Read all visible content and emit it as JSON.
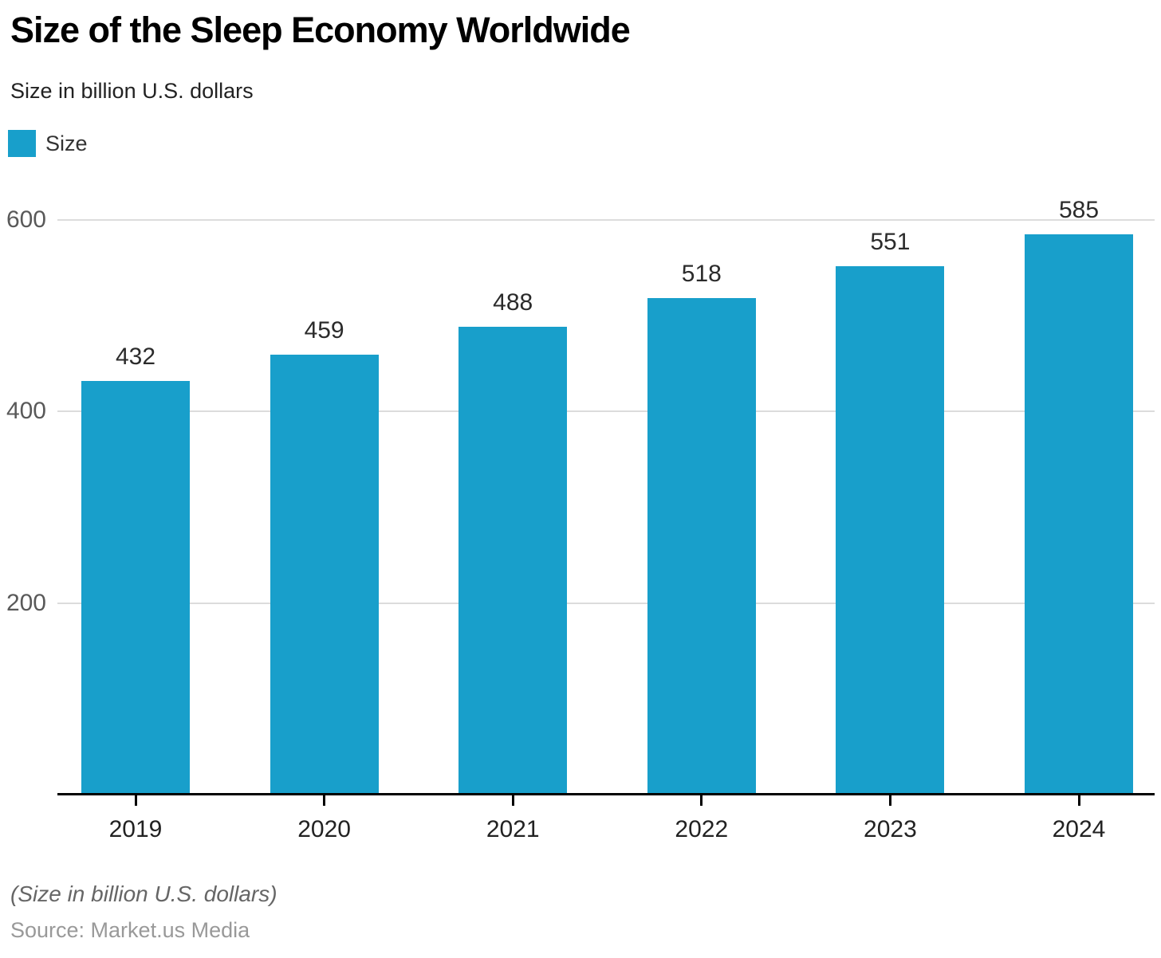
{
  "header": {
    "title": "Size of the Sleep Economy Worldwide",
    "subtitle": "Size in billion U.S. dollars"
  },
  "legend": {
    "items": [
      {
        "label": "Size",
        "color": "#189FCB"
      }
    ]
  },
  "chart_data": {
    "type": "bar",
    "title": "Size of the Sleep Economy Worldwide",
    "subtitle": "Size in billion U.S. dollars",
    "categories": [
      "2019",
      "2020",
      "2021",
      "2022",
      "2023",
      "2024"
    ],
    "series": [
      {
        "name": "Size",
        "values": [
          432,
          459,
          488,
          518,
          551,
          585
        ]
      }
    ],
    "xlabel": "",
    "ylabel": "",
    "ylim": [
      0,
      620
    ],
    "yticks": [
      200,
      400,
      600
    ],
    "grid": true,
    "legend_position": "top-left",
    "data_labels": true,
    "bar_color": "#189FCB",
    "gridline_color": "#dcdcdc",
    "axis_color": "#000000",
    "ytick_label_color": "#595959"
  },
  "footer": {
    "note": "(Size in billion U.S. dollars)",
    "source": "Source: Market.us Media"
  }
}
